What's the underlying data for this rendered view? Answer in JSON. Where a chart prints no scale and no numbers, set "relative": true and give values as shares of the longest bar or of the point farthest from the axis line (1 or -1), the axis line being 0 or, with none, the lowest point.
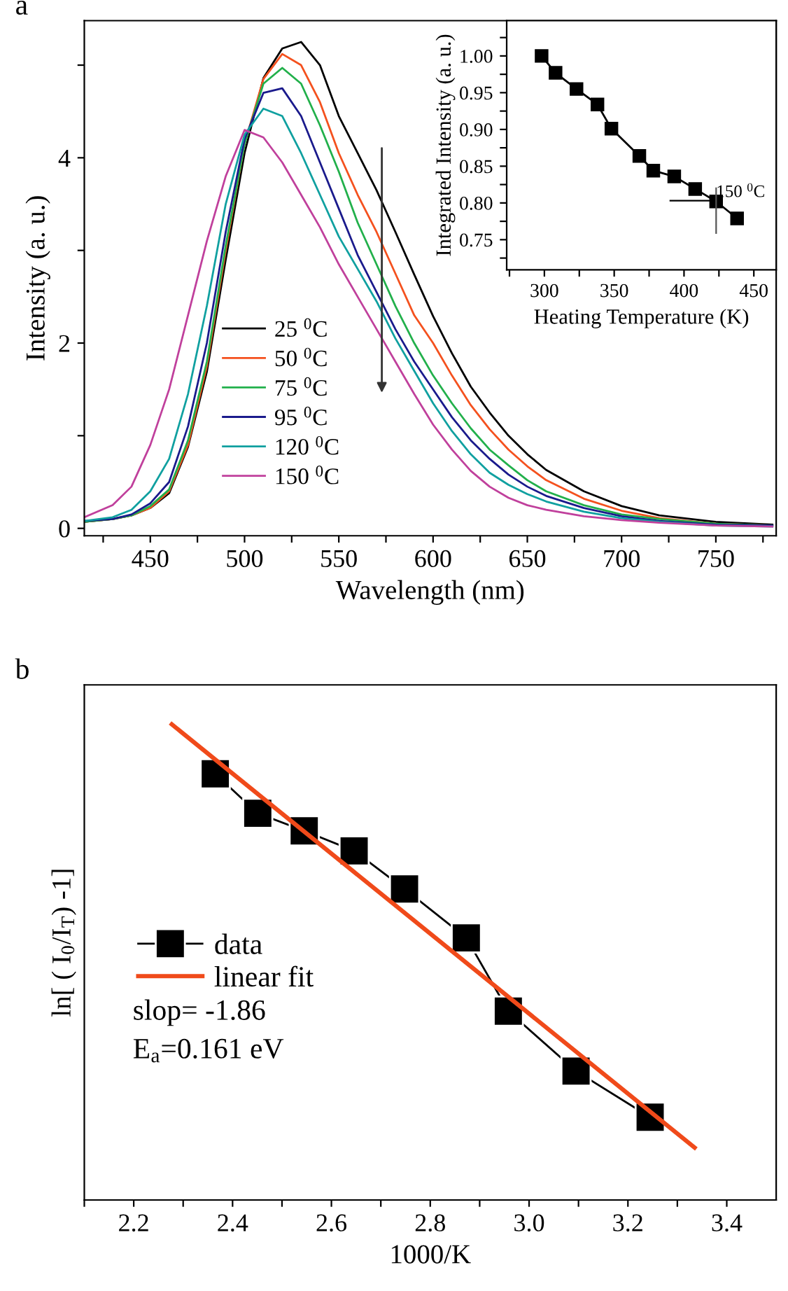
{
  "chart_data": [
    {
      "type": "line",
      "title": "a",
      "xlabel": "Wavelength (nm)",
      "ylabel": "Intensity (a. u.)",
      "x": [
        415,
        430,
        440,
        450,
        460,
        470,
        480,
        490,
        500,
        510,
        520,
        530,
        540,
        550,
        560,
        570,
        580,
        590,
        600,
        610,
        620,
        630,
        640,
        650,
        660,
        680,
        700,
        720,
        750,
        780
      ],
      "xlim": [
        415,
        782
      ],
      "ylim": [
        -0.08,
        5.48
      ],
      "xticks": [
        {
          "value": 425,
          "label": null
        },
        450,
        {
          "value": 475,
          "label": null
        },
        500,
        {
          "value": 525,
          "label": null
        },
        550,
        {
          "value": 575,
          "label": null
        },
        600,
        {
          "value": 625,
          "label": null
        },
        650,
        {
          "value": 675,
          "label": null
        },
        700,
        {
          "value": 725,
          "label": null
        },
        750,
        {
          "value": 775,
          "label": null
        }
      ],
      "yticks": [
        0,
        {
          "value": 1,
          "label": null
        },
        2,
        {
          "value": 3,
          "label": null
        },
        4,
        {
          "value": 5,
          "label": null
        }
      ],
      "legend": "bottom left",
      "grid": false,
      "marker": "none",
      "line_style": "solid",
      "series": [
        {
          "name": "25 $^{0}$C",
          "color": "#000000",
          "values": [
            0.07,
            0.1,
            0.14,
            0.22,
            0.38,
            0.88,
            1.69,
            2.9,
            4.05,
            4.86,
            5.18,
            5.25,
            5.0,
            4.45,
            4.05,
            3.65,
            3.2,
            2.74,
            2.29,
            1.89,
            1.53,
            1.25,
            1.0,
            0.8,
            0.63,
            0.4,
            0.24,
            0.14,
            0.07,
            0.04
          ]
        },
        {
          "name": "50 $^{0}$C",
          "color": "#f4511e",
          "values": [
            0.07,
            0.1,
            0.14,
            0.22,
            0.4,
            0.9,
            1.75,
            3.0,
            4.15,
            4.85,
            5.12,
            5.0,
            4.6,
            4.05,
            3.6,
            3.2,
            2.75,
            2.3,
            2.0,
            1.65,
            1.33,
            1.07,
            0.85,
            0.67,
            0.52,
            0.32,
            0.19,
            0.11,
            0.05,
            0.03
          ]
        },
        {
          "name": "75 $^{0}$C",
          "color": "#22b04b",
          "values": [
            0.07,
            0.1,
            0.14,
            0.24,
            0.42,
            0.95,
            1.8,
            3.05,
            4.15,
            4.8,
            4.97,
            4.8,
            4.35,
            3.85,
            3.3,
            2.85,
            2.4,
            2.0,
            1.65,
            1.35,
            1.08,
            0.85,
            0.68,
            0.52,
            0.4,
            0.25,
            0.15,
            0.1,
            0.05,
            0.03
          ]
        },
        {
          "name": "95 $^{0}$C",
          "color": "#1a1a8c",
          "values": [
            0.08,
            0.1,
            0.15,
            0.27,
            0.5,
            1.1,
            2.0,
            3.2,
            4.2,
            4.7,
            4.75,
            4.45,
            3.95,
            3.45,
            2.95,
            2.55,
            2.15,
            1.8,
            1.5,
            1.2,
            0.95,
            0.75,
            0.58,
            0.45,
            0.35,
            0.22,
            0.13,
            0.08,
            0.04,
            0.03
          ]
        },
        {
          "name": "120 $^{0}$C",
          "color": "#10a0a0",
          "values": [
            0.08,
            0.12,
            0.2,
            0.4,
            0.75,
            1.45,
            2.4,
            3.5,
            4.25,
            4.53,
            4.45,
            4.05,
            3.6,
            3.15,
            2.8,
            2.45,
            2.05,
            1.7,
            1.35,
            1.05,
            0.8,
            0.6,
            0.47,
            0.37,
            0.29,
            0.18,
            0.11,
            0.07,
            0.03,
            0.02
          ]
        },
        {
          "name": "150 $^{0}$C",
          "color": "#c0409c",
          "values": [
            0.12,
            0.25,
            0.45,
            0.9,
            1.5,
            2.3,
            3.1,
            3.8,
            4.3,
            4.22,
            3.95,
            3.6,
            3.25,
            2.85,
            2.5,
            2.15,
            1.8,
            1.45,
            1.12,
            0.85,
            0.62,
            0.45,
            0.33,
            0.25,
            0.2,
            0.13,
            0.09,
            0.06,
            0.03,
            0.02
          ]
        }
      ]
    },
    {
      "type": "line",
      "xlabel": "Heating Temperature (K)",
      "ylabel": "Integrated Intensity (a. u.)",
      "x": [
        298,
        308,
        323,
        338,
        348,
        368,
        378,
        393,
        408,
        423,
        438
      ],
      "xlim": [
        273,
        466
      ],
      "ylim": [
        0.709,
        1.048
      ],
      "xticks": [
        {
          "value": 275,
          "label": null
        },
        300,
        {
          "value": 325,
          "label": null
        },
        350,
        {
          "value": 375,
          "label": null
        },
        400,
        {
          "value": 425,
          "label": null
        },
        450
      ],
      "yticks": [
        {
          "value": 0.725,
          "label": null
        },
        {
          "value": 0.75,
          "label": "0.75"
        },
        {
          "value": 0.775,
          "label": null
        },
        {
          "value": 0.8,
          "label": "0.80"
        },
        {
          "value": 0.825,
          "label": null
        },
        {
          "value": 0.85,
          "label": "0.85"
        },
        {
          "value": 0.875,
          "label": null
        },
        {
          "value": 0.9,
          "label": "0.90"
        },
        {
          "value": 0.925,
          "label": null
        },
        {
          "value": 0.95,
          "label": "0.95"
        },
        {
          "value": 0.975,
          "label": null
        },
        {
          "value": 1.0,
          "label": "1.00"
        },
        {
          "value": 1.025,
          "label": null
        }
      ],
      "grid": false,
      "marker": "square",
      "line_style": "solid",
      "annotations": [
        {
          "text": "150 $^{0}$C",
          "x": 423,
          "y": 0.803
        }
      ],
      "series": [
        {
          "color": "#000000",
          "values": [
            1.0,
            0.977,
            0.955,
            0.934,
            0.901,
            0.864,
            0.844,
            0.836,
            0.819,
            0.802,
            0.779
          ]
        }
      ]
    },
    {
      "type": "line",
      "title": "b",
      "xlabel": "1000/K",
      "ylabel": "ln[ ( I$_{0}$/I$_{T}$) -1]",
      "relative": true,
      "xlim": [
        2.1,
        3.5
      ],
      "xticks": [
        {
          "value": 2.1,
          "label": null
        },
        2.2,
        {
          "value": 2.3,
          "label": null
        },
        2.4,
        {
          "value": 2.5,
          "label": null
        },
        2.6,
        {
          "value": 2.7,
          "label": null
        },
        2.8,
        {
          "value": 2.9,
          "label": null
        },
        {
          "value": 3.0,
          "label": "3.0"
        },
        {
          "value": 3.1,
          "label": null
        },
        3.2,
        {
          "value": 3.3,
          "label": null
        },
        3.4
      ],
      "grid": false,
      "legend": "left",
      "line_style": "solid",
      "annotations": [
        "slop= -1.86",
        "E$_{a}$=0.161 eV"
      ],
      "series": [
        {
          "name": "data",
          "color": "#000000",
          "marker": "square",
          "x": [
            2.365,
            2.451,
            2.545,
            2.646,
            2.748,
            2.873,
            2.958,
            3.095,
            3.245
          ],
          "values": [
            0.896,
            0.813,
            0.776,
            0.734,
            0.654,
            0.551,
            0.397,
            0.271,
            0.174
          ]
        },
        {
          "name": "linear fit",
          "color": "#f04a1a",
          "marker": "none",
          "x": [
            2.277,
            3.335
          ],
          "values": [
            1.0,
            0.11
          ]
        }
      ]
    }
  ]
}
